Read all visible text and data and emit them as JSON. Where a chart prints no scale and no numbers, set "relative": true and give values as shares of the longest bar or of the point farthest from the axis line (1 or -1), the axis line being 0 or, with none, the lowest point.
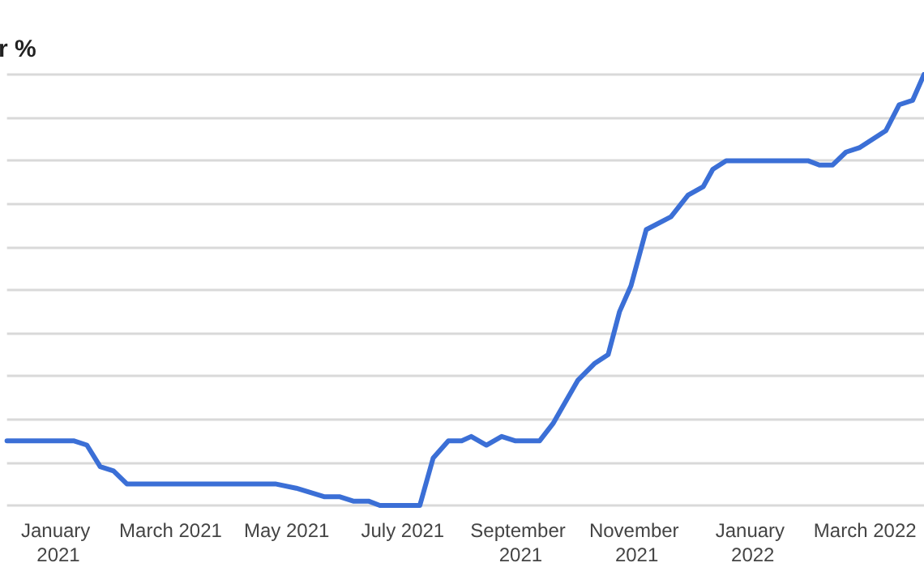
{
  "chart_data": {
    "type": "line",
    "title": "r %",
    "relative": true,
    "grid": "y",
    "xlim": [
      "2020-12-05",
      "2022-04-01"
    ],
    "xticks": [
      {
        "value": "2021-01-01",
        "label": "January 2021"
      },
      {
        "value": "2021-03-01",
        "label": "March 2021"
      },
      {
        "value": "2021-05-01",
        "label": "May 2021"
      },
      {
        "value": "2021-07-01",
        "label": "July 2021"
      },
      {
        "value": "2021-09-01",
        "label": "September 2021"
      },
      {
        "value": "2021-11-01",
        "label": "November 2021"
      },
      {
        "value": "2022-01-01",
        "label": "January 2022"
      },
      {
        "value": "2022-03-01",
        "label": "March 2022"
      }
    ],
    "series": [
      {
        "color": "#3b6fd6",
        "x": [
          "2020-12-05",
          "2021-01-09",
          "2021-01-16",
          "2021-01-23",
          "2021-01-30",
          "2021-02-06",
          "2021-04-25",
          "2021-05-06",
          "2021-05-21",
          "2021-05-29",
          "2021-06-05",
          "2021-06-13",
          "2021-06-19",
          "2021-07-10",
          "2021-07-17",
          "2021-07-25",
          "2021-08-01",
          "2021-08-06",
          "2021-08-14",
          "2021-08-22",
          "2021-08-29",
          "2021-09-11",
          "2021-09-18",
          "2021-10-01",
          "2021-10-10",
          "2021-10-17",
          "2021-10-23",
          "2021-10-29",
          "2021-11-06",
          "2021-11-19",
          "2021-11-28",
          "2021-12-06",
          "2021-12-11",
          "2021-12-18",
          "2022-01-30",
          "2022-02-05",
          "2022-02-12",
          "2022-02-19",
          "2022-02-26",
          "2022-03-12",
          "2022-03-19",
          "2022-03-26",
          "2022-04-01"
        ],
        "values": [
          0.15,
          0.15,
          0.14,
          0.09,
          0.08,
          0.05,
          0.05,
          0.04,
          0.02,
          0.02,
          0.01,
          0.01,
          0,
          0,
          0.11,
          0.15,
          0.15,
          0.16,
          0.14,
          0.16,
          0.15,
          0.15,
          0.19,
          0.29,
          0.33,
          0.35,
          0.45,
          0.51,
          0.64,
          0.67,
          0.72,
          0.74,
          0.78,
          0.8,
          0.8,
          0.79,
          0.79,
          0.82,
          0.83,
          0.87,
          0.93,
          0.94,
          1
        ]
      }
    ]
  }
}
